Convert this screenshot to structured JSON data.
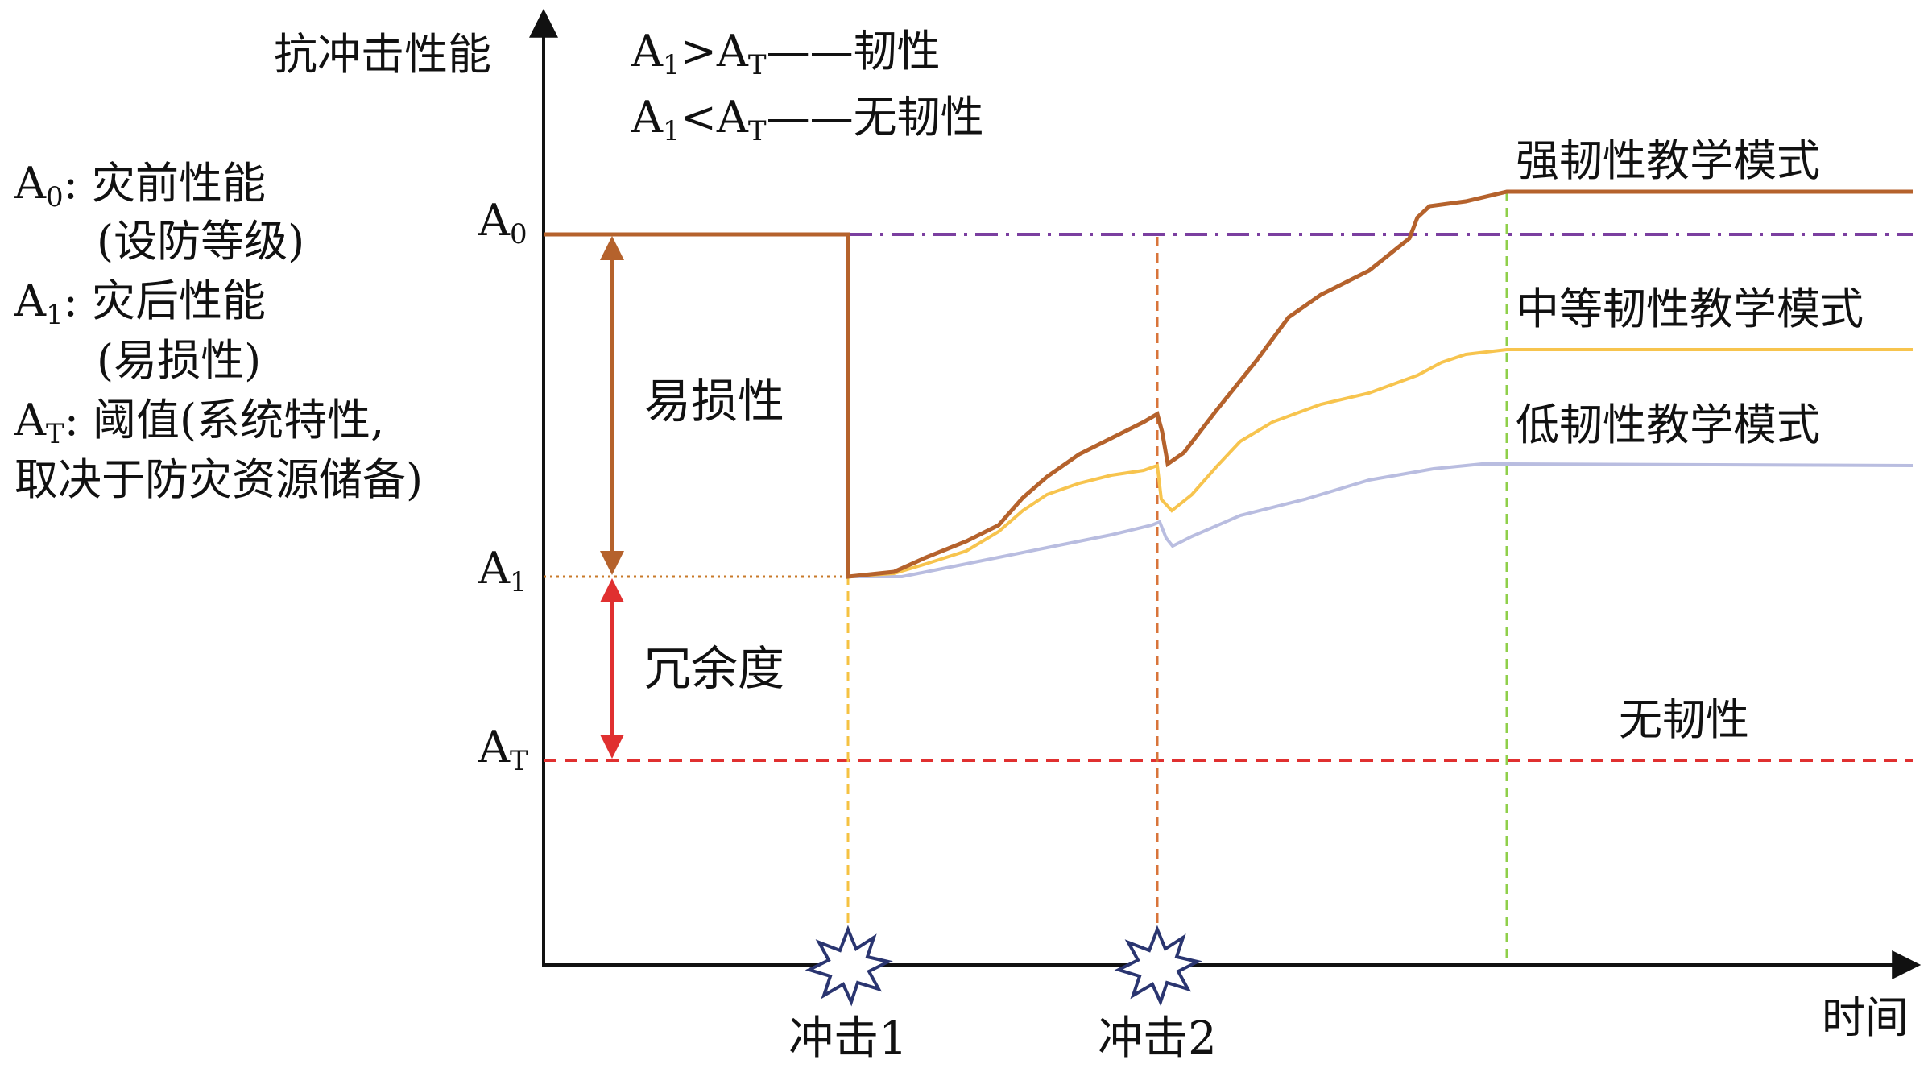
{
  "axes": {
    "y_label": "抗冲击性能",
    "x_label": "时间"
  },
  "legend_defs": [
    {
      "sym": "A",
      "sub": "0",
      "text": ": 灾前性能"
    },
    {
      "sym": "",
      "sub": "",
      "text": "(设防等级)"
    },
    {
      "sym": "A",
      "sub": "1",
      "text": ": 灾后性能"
    },
    {
      "sym": "",
      "sub": "",
      "text": "(易损性)"
    },
    {
      "sym": "A",
      "sub": "T",
      "text": ": 阈值(系统特性,"
    },
    {
      "sym": "",
      "sub": "",
      "text": "取决于防灾资源储备)"
    }
  ],
  "conditions": [
    {
      "lhs": "A",
      "lhs_sub": "1",
      "op": ">",
      "rhs": "A",
      "rhs_sub": "T",
      "dash": "——",
      "result": "韧性"
    },
    {
      "lhs": "A",
      "lhs_sub": "1",
      "op": "<",
      "rhs": "A",
      "rhs_sub": "T",
      "dash": "——",
      "result": "无韧性"
    }
  ],
  "levels": [
    {
      "sym": "A",
      "sub": "0",
      "color": "#7b3fa0",
      "style": "dash-dot"
    },
    {
      "sym": "A",
      "sub": "1",
      "color": "#c87a2a",
      "style": "dotted"
    },
    {
      "sym": "A",
      "sub": "T",
      "color": "#e03030",
      "style": "dashed"
    }
  ],
  "regions": {
    "vulnerability": "易损性",
    "redundancy": "冗余度",
    "vulnerability_arrow_color": "#b5622c",
    "redundancy_arrow_color": "#e03030"
  },
  "impacts": [
    {
      "label": "冲击1",
      "line_color": "#f5c242"
    },
    {
      "label": "冲击2",
      "line_color": "#d8743a"
    }
  ],
  "recovery_marker_color": "#8fcf4a",
  "curves": [
    {
      "name": "强韧性教学模式",
      "color": "#b5622c"
    },
    {
      "name": "中等韧性教学模式",
      "color": "#f7c44e"
    },
    {
      "name": "低韧性教学模式",
      "color": "#b9bde0"
    },
    {
      "name": "无韧性",
      "color": "#e03030"
    }
  ],
  "impact_icon": "starburst-icon"
}
